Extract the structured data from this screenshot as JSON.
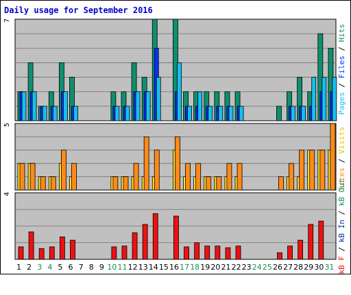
{
  "title": "Daily usage for September 2016",
  "colors": {
    "hits": "#0f8f6f",
    "files": "#0033ff",
    "pages": "#1abfef",
    "visits": "#ffe829",
    "sites": "#ff8a1a",
    "kb_in": "#1fa0a0",
    "kb_out": "#0033aa",
    "kb_f": "#ee1111",
    "plot_bg": "#c0c0c0",
    "grid": "#707070",
    "weekend": "#0f8f4f",
    "weekday": "#000000"
  },
  "side_labels": {
    "top": [
      {
        "text": "Pages",
        "color": "#1abfef"
      },
      {
        "text": " / ",
        "color": "#000000"
      },
      {
        "text": "Files",
        "color": "#0033ff"
      },
      {
        "text": " / ",
        "color": "#000000"
      },
      {
        "text": "Hits",
        "color": "#0f8f6f"
      }
    ],
    "middle": [
      {
        "text": "Sites",
        "color": "#ff8a1a"
      },
      {
        "text": " / ",
        "color": "#000000"
      },
      {
        "text": "Visits",
        "color": "#e6c800"
      }
    ],
    "bottom": [
      {
        "text": "kB F",
        "color": "#ee1111"
      },
      {
        "text": " / ",
        "color": "#000000"
      },
      {
        "text": "kB In",
        "color": "#0033aa"
      },
      {
        "text": " / ",
        "color": "#000000"
      },
      {
        "text": "kB Out",
        "color": "#0f8f6f"
      }
    ]
  },
  "chart_data": {
    "type": "bar",
    "categories": [
      "1",
      "2",
      "3",
      "4",
      "5",
      "6",
      "7",
      "8",
      "9",
      "10",
      "11",
      "12",
      "13",
      "14",
      "15",
      "16",
      "17",
      "18",
      "19",
      "20",
      "21",
      "22",
      "23",
      "24",
      "25",
      "26",
      "27",
      "28",
      "29",
      "30",
      "31"
    ],
    "weekend_days": [
      3,
      4,
      10,
      11,
      17,
      18,
      24,
      25,
      31
    ],
    "panels": [
      {
        "name": "hits_files_pages",
        "y_max_label": "7",
        "ymax": 7,
        "series": [
          {
            "name": "Hits",
            "values": [
              2,
              4,
              1,
              2,
              4,
              3,
              0,
              0,
              0,
              2,
              2,
              4,
              3,
              7,
              0,
              7,
              2,
              2,
              2,
              2,
              2,
              2,
              0,
              0,
              0,
              1,
              2,
              3,
              2,
              6,
              5
            ]
          },
          {
            "name": "Files",
            "values": [
              2,
              2,
              1,
              1,
              2,
              1,
              0,
              0,
              0,
              1,
              1,
              2,
              2,
              5,
              0,
              2,
              1,
              1,
              1,
              1,
              1,
              1,
              0,
              0,
              0,
              0,
              1,
              1,
              1,
              2,
              2
            ]
          },
          {
            "name": "Pages",
            "values": [
              2,
              2,
              1,
              1,
              2,
              1,
              0,
              0,
              0,
              1,
              1,
              2,
              2,
              3,
              0,
              4,
              1,
              2,
              1,
              1,
              1,
              1,
              0,
              0,
              0,
              0,
              1,
              1,
              3,
              3,
              3
            ]
          }
        ]
      },
      {
        "name": "visits_sites",
        "y_max_label": "5",
        "ymax": 5,
        "series": [
          {
            "name": "Visits",
            "values": [
              2,
              2,
              1,
              1,
              2,
              1,
              0,
              0,
              0,
              1,
              1,
              1,
              1,
              1,
              0,
              3,
              1,
              1,
              1,
              1,
              1,
              1,
              0,
              0,
              0,
              0,
              1,
              1,
              3,
              3,
              3
            ]
          },
          {
            "name": "Sites",
            "values": [
              2,
              2,
              1,
              1,
              3,
              2,
              0,
              0,
              0,
              1,
              1,
              2,
              4,
              3,
              0,
              4,
              2,
              2,
              1,
              1,
              2,
              2,
              0,
              0,
              0,
              1,
              2,
              3,
              3,
              3,
              5
            ]
          }
        ]
      },
      {
        "name": "kbytes",
        "y_max_label": "4",
        "ymax": 4,
        "series": [
          {
            "name": "kB F",
            "values": [
              0.75,
              1.65,
              0.65,
              0.75,
              1.35,
              1.15,
              0,
              0,
              0,
              0.75,
              0.8,
              1.6,
              2.1,
              2.75,
              0,
              2.6,
              0.75,
              1.0,
              0.8,
              0.8,
              0.7,
              0.8,
              0,
              0,
              0,
              0.4,
              0.8,
              1.15,
              2.1,
              2.3,
              0
            ]
          }
        ]
      }
    ]
  }
}
